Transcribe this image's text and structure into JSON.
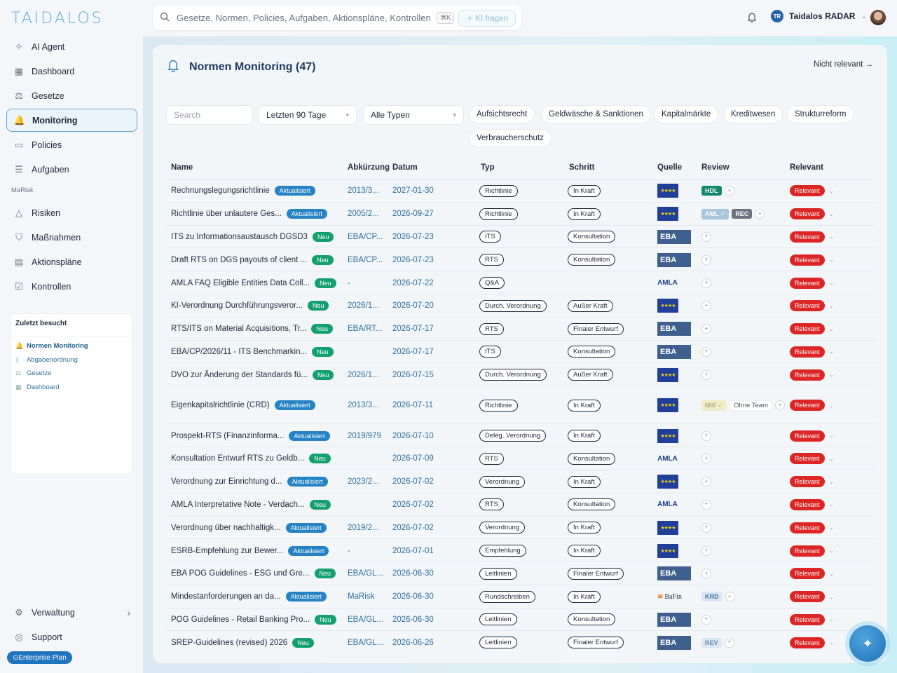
{
  "app": {
    "logo": "TAIDALOS"
  },
  "search": {
    "placeholder": "Gesetze, Normen, Policies, Aufgaben, Aktionspläne, Kontrollen durchsuchen",
    "shortcut": "⌘K",
    "ai_button": "KI fragen"
  },
  "user": {
    "initials": "TR",
    "name": "Taidalos RADAR"
  },
  "sidebar": {
    "items": [
      {
        "label": "AI Agent",
        "icon": "sparkle-icon"
      },
      {
        "label": "Dashboard",
        "icon": "grid-icon"
      },
      {
        "label": "Gesetze",
        "icon": "scale-icon"
      },
      {
        "label": "Monitoring",
        "icon": "bell-icon",
        "active": true
      },
      {
        "label": "Policies",
        "icon": "document-icon"
      },
      {
        "label": "Aufgaben",
        "icon": "list-icon"
      }
    ],
    "section_label": "MaRisk",
    "marisk_items": [
      {
        "label": "Risiken",
        "icon": "warning-icon"
      },
      {
        "label": "Maßnahmen",
        "icon": "shield-icon"
      },
      {
        "label": "Aktionspläne",
        "icon": "clipboard-icon"
      },
      {
        "label": "Kontrollen",
        "icon": "check-clipboard-icon"
      }
    ],
    "recent_title": "Zuletzt besucht",
    "recent": [
      {
        "label": "Normen Monitoring",
        "icon": "bell-icon"
      },
      {
        "label": "Abgabenordnung",
        "icon": "book-icon"
      },
      {
        "label": "Gesetze",
        "icon": "scale-icon"
      },
      {
        "label": "Dashboard",
        "icon": "grid-icon"
      }
    ],
    "bottom": [
      {
        "label": "Verwaltung",
        "icon": "gear-icon"
      },
      {
        "label": "Support",
        "icon": "lifebuoy-icon"
      }
    ],
    "plan": "Enterprise Plan"
  },
  "page": {
    "title": "Normen Monitoring (47)",
    "not_relevant": "Nicht relevant →"
  },
  "filters": {
    "search_placeholder": "Search",
    "period": "Letzten 90 Tage",
    "type": "Alle Typen",
    "chips": [
      "Aufsichtsrecht",
      "Geldwäsche & Sanktionen",
      "Kapitalmärkte",
      "Kreditwesen",
      "Strukturreform",
      "Verbraucherschutz"
    ]
  },
  "table": {
    "headers": [
      "Name",
      "Abkürzung",
      "Datum",
      "Typ",
      "Schritt",
      "Quelle",
      "Review",
      "Relevant"
    ],
    "rows": [
      {
        "name": "Rechnungslegungsrichtlinie",
        "badge": "Aktualisiert",
        "abk": "2013/3...",
        "date": "2027-01-30",
        "typ": "Richtlinie",
        "schritt": "In Kraft",
        "src": "eu",
        "review": [
          "HDL"
        ],
        "rel": "Relevant"
      },
      {
        "name": "Richtlinie über unlautere Ges...",
        "badge": "Aktualisiert",
        "abk": "2005/2...",
        "date": "2026-09-27",
        "typ": "Richtlinie",
        "schritt": "In Kraft",
        "src": "eu",
        "review": [
          "AML ✓",
          "REC"
        ],
        "rel": "Relevant"
      },
      {
        "name": "ITS zu Informationsaustausch DGSD3",
        "badge": "Neu",
        "abk": "EBA/CP...",
        "date": "2026-07-23",
        "typ": "ITS",
        "schritt": "Konsultation",
        "src": "eba",
        "review": [],
        "rel": "Relevant"
      },
      {
        "name": "Draft RTS on DGS payouts of client ...",
        "badge": "Neu",
        "abk": "EBA/CP...",
        "date": "2026-07-23",
        "typ": "RTS",
        "schritt": "Konsultation",
        "src": "eba",
        "review": [],
        "rel": "Relevant"
      },
      {
        "name": "AMLA FAQ Eligible Entities Data Coll...",
        "badge": "Neu",
        "abk": "-",
        "date": "2026-07-22",
        "typ": "Q&A",
        "schritt": "",
        "src": "amla",
        "review": [],
        "rel": "Relevant"
      },
      {
        "name": "KI-Verordnung Durchführungsveror...",
        "badge": "Neu",
        "abk": "2026/1...",
        "date": "2026-07-20",
        "typ": "Durch. Verordnung",
        "schritt": "Außer Kraft",
        "src": "eu",
        "review": [],
        "rel": "Relevant"
      },
      {
        "name": "RTS/ITS on Material Acquisitions, Tr...",
        "badge": "Neu",
        "abk": "EBA/RT...",
        "date": "2026-07-17",
        "typ": "RTS",
        "schritt": "Finaler Entwurf",
        "src": "eba",
        "review": [],
        "rel": "Relevant"
      },
      {
        "name": "EBA/CP/2026/11 - ITS Benchmarkin...",
        "badge": "Neu",
        "abk": "",
        "date": "2026-07-17",
        "typ": "ITS",
        "schritt": "Konsultation",
        "src": "eba",
        "review": [],
        "rel": "Relevant"
      },
      {
        "name": "DVO zur Änderung der Standards fü...",
        "badge": "Neu",
        "abk": "2026/1...",
        "date": "2026-07-15",
        "typ": "Durch. Verordnung",
        "schritt": "Außer Kraft",
        "src": "eu",
        "review": [],
        "rel": "Relevant"
      },
      {
        "name": "Eigenkapitalrichtlinie (CRD)",
        "badge": "Aktualisiert",
        "abk": "2013/3...",
        "date": "2026-07-11",
        "typ": "Richtlinie",
        "schritt": "In Kraft",
        "src": "eu",
        "review": [
          "MW ✓",
          "Ohne Team"
        ],
        "rel": "Relevant",
        "tall": true
      },
      {
        "name": "Prospekt-RTS (Finanzinforma...",
        "badge": "Aktualisiert",
        "abk": "2019/979",
        "date": "2026-07-10",
        "typ": "Deleg. Verordnung",
        "schritt": "In Kraft",
        "src": "eu",
        "review": [],
        "rel": "Relevant"
      },
      {
        "name": "Konsultation Entwurf RTS zu Geldb...",
        "badge": "Neu",
        "abk": "",
        "date": "2026-07-09",
        "typ": "RTS",
        "schritt": "Konsultation",
        "src": "amla",
        "review": [],
        "rel": "Relevant"
      },
      {
        "name": "Verordnung zur Einrichtung d...",
        "badge": "Aktualisiert",
        "abk": "2023/2...",
        "date": "2026-07-02",
        "typ": "Verordnung",
        "schritt": "In Kraft",
        "src": "eu",
        "review": [],
        "rel": "Relevant"
      },
      {
        "name": "AMLA Interpretative Note - Verdach...",
        "badge": "Neu",
        "abk": "",
        "date": "2026-07-02",
        "typ": "RTS",
        "schritt": "Konsultation",
        "src": "amla",
        "review": [],
        "rel": "Relevant"
      },
      {
        "name": "Verordnung über nachhaltigk...",
        "badge": "Aktualisiert",
        "abk": "2019/2...",
        "date": "2026-07-02",
        "typ": "Verordnung",
        "schritt": "In Kraft",
        "src": "eu",
        "review": [],
        "rel": "Relevant"
      },
      {
        "name": "ESRB-Empfehlung zur Bewer...",
        "badge": "Aktualisiert",
        "abk": "-",
        "date": "2026-07-01",
        "typ": "Empfehlung",
        "schritt": "In Kraft",
        "src": "eu",
        "review": [],
        "rel": "Relevant"
      },
      {
        "name": "EBA POG Guidelines - ESG und Gre...",
        "badge": "Neu",
        "abk": "EBA/GL...",
        "date": "2026-06-30",
        "typ": "Leitlinien",
        "schritt": "Finaler Entwurf",
        "src": "eba",
        "review": [],
        "rel": "Relevant"
      },
      {
        "name": "Mindestanforderungen an da...",
        "badge": "Aktualisiert",
        "abk": "MaRisk",
        "date": "2026-06-30",
        "typ": "Rundschreiben",
        "schritt": "In Kraft",
        "src": "bafin",
        "review": [
          "KRD"
        ],
        "rel": "Relevant"
      },
      {
        "name": "POG Guidelines - Retail Banking Pro...",
        "badge": "Neu",
        "abk": "EBA/GL...",
        "date": "2026-06-30",
        "typ": "Leitlinien",
        "schritt": "Konsultation",
        "src": "eba",
        "review": [],
        "rel": "Relevant"
      },
      {
        "name": "SREP-Guidelines (revised) 2026",
        "badge": "Neu",
        "abk": "EBA/GL...",
        "date": "2026-06-26",
        "typ": "Leitlinien",
        "schritt": "Finaler Entwurf",
        "src": "eba",
        "review": [
          "REV"
        ],
        "rel": "Relevant"
      }
    ]
  },
  "sources": {
    "eba": "EBA",
    "amla": "AMLA",
    "bafin": "BaFin",
    "eu_stars": "★★★★"
  },
  "colors": {
    "accent": "#2582c4",
    "relevant": "#dc2626",
    "neu": "#13a06e"
  }
}
